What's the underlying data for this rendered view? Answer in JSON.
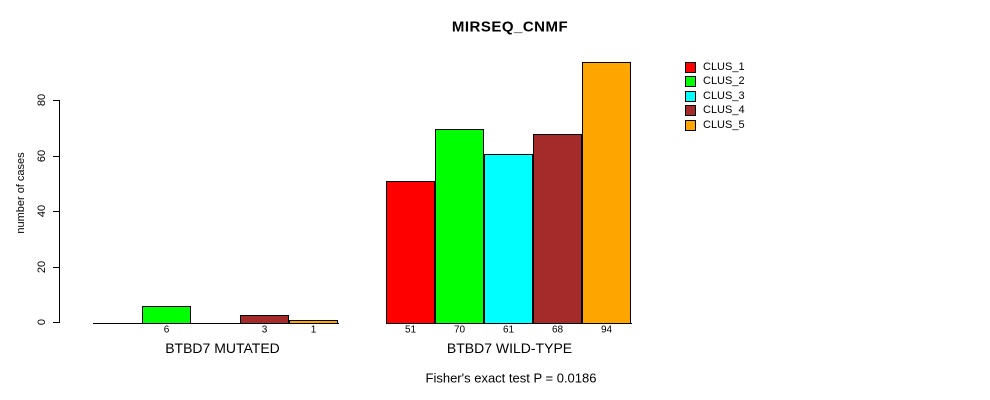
{
  "title": "MIRSEQ_CNMF",
  "footnote": "Fisher's exact test P = 0.0186",
  "legend": {
    "position": "top-right",
    "items": [
      {
        "label": "CLUS_1",
        "color": "#FF0000"
      },
      {
        "label": "CLUS_2",
        "color": "#00FF00"
      },
      {
        "label": "CLUS_3",
        "color": "#00FFFF"
      },
      {
        "label": "CLUS_4",
        "color": "#A52A2A"
      },
      {
        "label": "CLUS_5",
        "color": "#FFA500"
      }
    ]
  },
  "chart_data": {
    "type": "bar",
    "title": "MIRSEQ_CNMF",
    "xlabel": "",
    "ylabel": "number of cases",
    "yticks": [
      0,
      20,
      40,
      60,
      80
    ],
    "ylim": [
      0,
      94
    ],
    "grid": false,
    "legend_position": "top-right",
    "categories": [
      "CLUS_1",
      "CLUS_2",
      "CLUS_3",
      "CLUS_4",
      "CLUS_5"
    ],
    "series_colors": [
      "#FF0000",
      "#00FF00",
      "#00FFFF",
      "#A52A2A",
      "#FFA500"
    ],
    "groups": [
      {
        "label": "BTBD7 MUTATED",
        "values": [
          0,
          6,
          0,
          3,
          1
        ],
        "bar_labels": [
          "",
          "6",
          "",
          "3",
          "1"
        ]
      },
      {
        "label": "BTBD7 WILD-TYPE",
        "values": [
          51,
          70,
          61,
          68,
          94
        ],
        "bar_labels": [
          "51",
          "70",
          "61",
          "68",
          "94"
        ]
      }
    ]
  }
}
